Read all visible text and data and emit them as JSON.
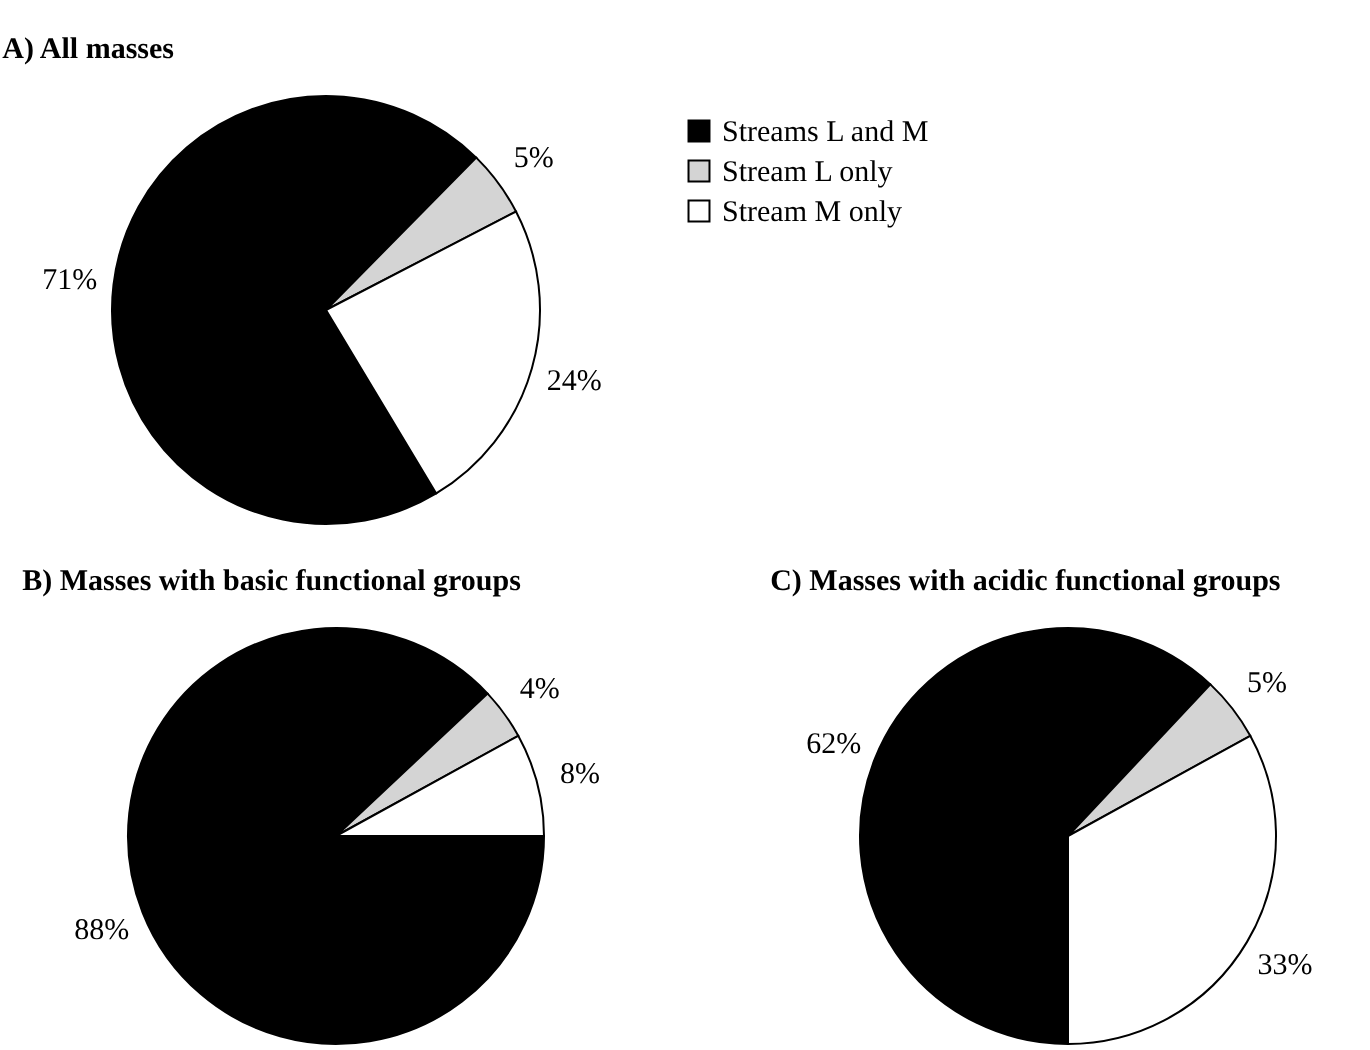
{
  "chart_data": [
    {
      "type": "pie",
      "title": "A) All masses",
      "categories": [
        "Streams L and M",
        "Stream L only",
        "Stream M only"
      ],
      "values": [
        71,
        5,
        24
      ],
      "colors": [
        "#000000",
        "#d4d4d4",
        "#ffffff"
      ],
      "value_labels": [
        "71%",
        "5%",
        "24%"
      ],
      "legend": "right"
    },
    {
      "type": "pie",
      "title": "B) Masses with basic functional groups",
      "values": [
        88,
        4,
        8
      ],
      "colors": [
        "#000000",
        "#d4d4d4",
        "#ffffff"
      ],
      "value_labels": [
        "88%",
        "4%",
        "8%"
      ]
    },
    {
      "type": "pie",
      "title": "C) Masses with acidic functional groups",
      "values": [
        62,
        5,
        33
      ],
      "colors": [
        "#000000",
        "#d4d4d4",
        "#ffffff"
      ],
      "value_labels": [
        "62%",
        "5%",
        "33%"
      ]
    }
  ]
}
